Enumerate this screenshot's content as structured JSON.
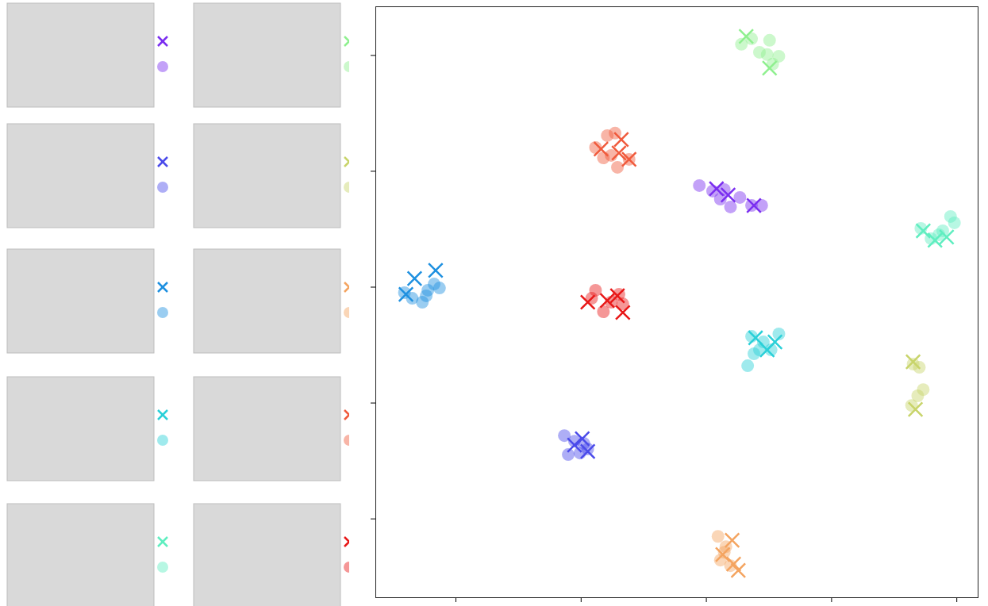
{
  "chart_data": {
    "type": "scatter",
    "xlim": [
      0.36,
      5.17
    ],
    "ylim": [
      0.32,
      5.42
    ],
    "xticks": [
      1,
      2,
      3,
      4,
      5
    ],
    "yticks": [
      1,
      2,
      3,
      4,
      5
    ],
    "tick_labels": false,
    "series": [
      {
        "color": "#7b2ff0",
        "marker": "x",
        "x": [
          3.081,
          3.174,
          3.38
        ],
        "y": [
          3.849,
          3.795,
          3.705
        ]
      },
      {
        "color": "#7b2ff0",
        "marker": "circle",
        "x": [
          2.944,
          3.05,
          3.143,
          3.193,
          3.268,
          3.361,
          3.442,
          3.112
        ],
        "y": [
          3.877,
          3.829,
          3.842,
          3.692,
          3.774,
          3.705,
          3.705,
          3.76
        ]
      },
      {
        "color": "#8ff08f",
        "marker": "x",
        "x": [
          3.318,
          3.505
        ],
        "y": [
          5.164,
          4.89
        ]
      },
      {
        "color": "#8ff08f",
        "marker": "circle",
        "x": [
          3.28,
          3.361,
          3.505,
          3.486,
          3.579,
          3.424,
          3.53
        ],
        "y": [
          5.096,
          5.144,
          5.13,
          5.007,
          4.993,
          5.027,
          4.925
        ]
      },
      {
        "color": "#4b4bea",
        "marker": "x",
        "x": [
          2.009,
          2.053,
          1.947
        ],
        "y": [
          1.692,
          1.582,
          1.637
        ]
      },
      {
        "color": "#4b4bea",
        "marker": "circle",
        "x": [
          1.866,
          1.897,
          1.991,
          2.053,
          1.947,
          2.022
        ],
        "y": [
          1.719,
          1.555,
          1.568,
          1.603,
          1.671,
          1.651
        ]
      },
      {
        "color": "#c8d46a",
        "marker": "x",
        "x": [
          4.651,
          4.67
        ],
        "y": [
          2.356,
          1.945
        ]
      },
      {
        "color": "#c8d46a",
        "marker": "circle",
        "x": [
          4.639,
          4.688,
          4.732,
          4.651,
          4.701
        ],
        "y": [
          1.979,
          2.062,
          2.116,
          2.336,
          2.308
        ]
      },
      {
        "color": "#1e90e0",
        "marker": "x",
        "x": [
          0.67,
          0.838,
          0.601
        ],
        "y": [
          3.075,
          3.144,
          2.938
        ]
      },
      {
        "color": "#1e90e0",
        "marker": "circle",
        "x": [
          0.589,
          0.651,
          0.732,
          0.776,
          0.826,
          0.869,
          0.763
        ],
        "y": [
          2.952,
          2.904,
          2.87,
          2.973,
          3.027,
          2.993,
          2.925
        ]
      },
      {
        "color": "#f4a460",
        "marker": "x",
        "x": [
          3.206,
          3.218,
          3.255,
          3.131
        ],
        "y": [
          0.815,
          0.61,
          0.555,
          0.692
        ]
      },
      {
        "color": "#f4a460",
        "marker": "circle",
        "x": [
          3.093,
          3.156,
          3.112,
          3.193,
          3.143
        ],
        "y": [
          0.849,
          0.76,
          0.644,
          0.596,
          0.712
        ]
      },
      {
        "color": "#2bd0d8",
        "marker": "x",
        "x": [
          3.393,
          3.486,
          3.548
        ],
        "y": [
          2.562,
          2.459,
          2.527
        ]
      },
      {
        "color": "#2bd0d8",
        "marker": "circle",
        "x": [
          3.33,
          3.38,
          3.455,
          3.579,
          3.517,
          3.361,
          3.424
        ],
        "y": [
          2.322,
          2.425,
          2.527,
          2.596,
          2.459,
          2.575,
          2.459
        ]
      },
      {
        "color": "#f05a3c",
        "marker": "x",
        "x": [
          2.159,
          2.321,
          2.383,
          2.302
        ],
        "y": [
          4.192,
          4.274,
          4.103,
          4.158
        ]
      },
      {
        "color": "#f05a3c",
        "marker": "circle",
        "x": [
          2.115,
          2.209,
          2.271,
          2.178,
          2.29,
          2.383,
          2.24
        ],
        "y": [
          4.205,
          4.308,
          4.329,
          4.116,
          4.034,
          4.103,
          4.137
        ]
      },
      {
        "color": "#60eec0",
        "marker": "x",
        "x": [
          4.826,
          4.919,
          4.732
        ],
        "y": [
          3.404,
          3.432,
          3.486
        ]
      },
      {
        "color": "#60eec0",
        "marker": "circle",
        "x": [
          4.713,
          4.794,
          4.857,
          4.95,
          4.981,
          4.888
        ],
        "y": [
          3.507,
          3.418,
          3.452,
          3.61,
          3.555,
          3.486
        ]
      },
      {
        "color": "#e81818",
        "marker": "x",
        "x": [
          2.053,
          2.29,
          2.333,
          2.209
        ],
        "y": [
          2.87,
          2.925,
          2.781,
          2.884
        ]
      },
      {
        "color": "#e81818",
        "marker": "circle",
        "x": [
          2.115,
          2.178,
          2.24,
          2.084,
          2.302,
          2.333
        ],
        "y": [
          2.973,
          2.788,
          2.87,
          2.904,
          2.938,
          2.856
        ]
      }
    ]
  }
}
